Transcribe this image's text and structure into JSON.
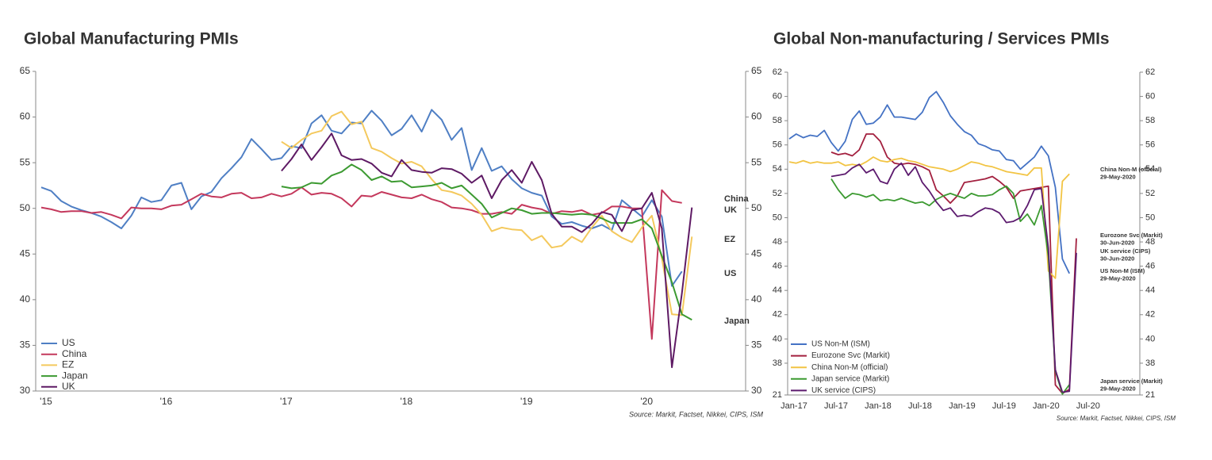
{
  "chart_data": [
    {
      "type": "line",
      "title": "Global Manufacturing PMIs",
      "categories": [
        "'15",
        null,
        null,
        null,
        null,
        null,
        null,
        null,
        null,
        null,
        null,
        null,
        "'16",
        null,
        null,
        null,
        null,
        null,
        null,
        null,
        null,
        null,
        null,
        null,
        "'17",
        null,
        null,
        null,
        null,
        null,
        null,
        null,
        null,
        null,
        null,
        null,
        "'18",
        null,
        null,
        null,
        null,
        null,
        null,
        null,
        null,
        null,
        null,
        null,
        "'19",
        null,
        null,
        null,
        null,
        null,
        null,
        null,
        null,
        null,
        null,
        null,
        "'20",
        null,
        null,
        null,
        null,
        null
      ],
      "series": [
        {
          "name": "US",
          "color": "#4f7fc4",
          "values": [
            52.3,
            51.9,
            50.8,
            50.2,
            49.8,
            49.5,
            49.1,
            48.5,
            47.8,
            49.2,
            51.2,
            50.7,
            50.9,
            52.5,
            52.8,
            49.9,
            51.3,
            51.8,
            53.3,
            54.4,
            55.6,
            57.6,
            56.5,
            55.3,
            55.5,
            56.8,
            56.6,
            59.3,
            60.2,
            58.5,
            58.2,
            59.4,
            59.3,
            60.7,
            59.6,
            58.0,
            58.7,
            60.2,
            58.4,
            60.8,
            59.7,
            57.5,
            58.8,
            54.2,
            56.6,
            54.1,
            54.6,
            53.2,
            52.2,
            51.7,
            51.4,
            49.1,
            48.3,
            48.5,
            48.1,
            47.8,
            48.2,
            47.6,
            50.9,
            50.0,
            49.1,
            50.9,
            49.1,
            41.5,
            43.1,
            null
          ]
        },
        {
          "name": "China",
          "color": "#c4385c",
          "values": [
            50.1,
            49.9,
            49.6,
            49.7,
            49.7,
            49.5,
            49.6,
            49.3,
            48.9,
            50.1,
            50.0,
            50.0,
            49.9,
            50.3,
            50.4,
            51.0,
            51.6,
            51.3,
            51.2,
            51.6,
            51.7,
            51.1,
            51.2,
            51.6,
            51.3,
            51.6,
            52.3,
            51.5,
            51.7,
            51.6,
            51.1,
            50.2,
            51.4,
            51.3,
            51.8,
            51.5,
            51.2,
            51.1,
            51.5,
            51.0,
            50.7,
            50.1,
            50.0,
            49.8,
            49.4,
            49.4,
            49.6,
            49.4,
            50.4,
            50.1,
            49.9,
            49.4,
            49.7,
            49.6,
            49.8,
            49.3,
            49.5,
            50.2,
            50.2,
            50.0,
            50.0,
            35.7,
            52.0,
            50.8,
            50.6,
            null
          ]
        },
        {
          "name": "EZ",
          "color": "#f4c95d",
          "values": [
            null,
            null,
            null,
            null,
            null,
            null,
            null,
            null,
            null,
            null,
            null,
            null,
            null,
            null,
            null,
            null,
            null,
            null,
            null,
            null,
            null,
            null,
            null,
            null,
            57.3,
            56.6,
            57.5,
            58.2,
            58.5,
            60.1,
            60.6,
            59.2,
            59.5,
            56.6,
            56.2,
            55.5,
            54.9,
            55.1,
            54.6,
            53.2,
            52.0,
            51.8,
            51.4,
            50.5,
            49.3,
            47.5,
            47.9,
            47.7,
            47.6,
            46.5,
            47.0,
            45.7,
            45.9,
            46.9,
            46.3,
            47.9,
            49.2,
            47.5,
            46.8,
            46.3,
            47.9,
            49.2,
            44.5,
            38.4,
            38.3,
            46.9
          ]
        },
        {
          "name": "Japan",
          "color": "#3c9a31",
          "values": [
            null,
            null,
            null,
            null,
            null,
            null,
            null,
            null,
            null,
            null,
            null,
            null,
            null,
            null,
            null,
            null,
            null,
            null,
            null,
            null,
            null,
            null,
            null,
            null,
            52.4,
            52.2,
            52.3,
            52.8,
            52.7,
            53.6,
            54.0,
            54.8,
            54.2,
            53.1,
            53.5,
            52.9,
            53.0,
            52.3,
            52.4,
            52.5,
            52.8,
            52.2,
            52.5,
            51.5,
            50.5,
            49.0,
            49.5,
            50.0,
            49.8,
            49.4,
            49.5,
            49.5,
            49.4,
            49.3,
            49.4,
            49.3,
            48.9,
            48.4,
            48.4,
            48.4,
            48.8,
            47.8,
            44.8,
            41.9,
            38.4,
            37.8
          ]
        },
        {
          "name": "UK",
          "color": "#5e1a64",
          "values": [
            null,
            null,
            null,
            null,
            null,
            null,
            null,
            null,
            null,
            null,
            null,
            null,
            null,
            null,
            null,
            null,
            null,
            null,
            null,
            null,
            null,
            null,
            null,
            null,
            54.1,
            55.4,
            57.0,
            55.3,
            56.7,
            58.2,
            55.8,
            55.3,
            55.4,
            54.9,
            53.9,
            53.5,
            55.3,
            54.2,
            54.0,
            53.9,
            54.4,
            54.3,
            53.8,
            52.8,
            53.6,
            51.1,
            53.1,
            54.2,
            52.8,
            55.1,
            53.1,
            49.4,
            48.0,
            48.0,
            47.4,
            48.3,
            49.6,
            49.3,
            47.5,
            49.8,
            50.0,
            51.7,
            47.8,
            32.6,
            40.7,
            50.1
          ]
        }
      ],
      "ylim": [
        30,
        65
      ],
      "yticks": [
        30,
        35,
        40,
        45,
        50,
        55,
        60,
        65
      ],
      "y2lim": [
        30,
        65
      ],
      "y2ticks": [
        30,
        35,
        40,
        45,
        50,
        55,
        60,
        65
      ],
      "legend": "lower left",
      "grid": false,
      "source": "Source: Markit, Factset, Nikkei, CIPS, ISM"
    },
    {
      "type": "line",
      "title": "Global Non-manufacturing / Services PMIs",
      "categories": [
        "Jan-17",
        null,
        null,
        null,
        null,
        null,
        "Jul-17",
        null,
        null,
        null,
        null,
        null,
        "Jan-18",
        null,
        null,
        null,
        null,
        null,
        "Jul-18",
        null,
        null,
        null,
        null,
        null,
        "Jan-19",
        null,
        null,
        null,
        null,
        null,
        "Jul-19",
        null,
        null,
        null,
        null,
        null,
        "Jan-20",
        null,
        null,
        null,
        null,
        null,
        "Jul-20"
      ],
      "series": [
        {
          "name": "US Non-M (ISM)",
          "end_date": "29-May-2020",
          "color": "#4472c4",
          "values": [
            56.5,
            56.9,
            56.6,
            56.8,
            56.7,
            57.2,
            56.2,
            55.5,
            56.3,
            58.1,
            58.8,
            57.7,
            57.8,
            58.3,
            59.3,
            58.3,
            58.3,
            58.2,
            58.1,
            58.7,
            59.9,
            60.4,
            59.5,
            58.4,
            57.7,
            57.1,
            56.8,
            56.1,
            55.9,
            55.6,
            55.5,
            54.8,
            54.7,
            54.0,
            54.5,
            55.0,
            55.9,
            55.1,
            52.5,
            46.6,
            45.4,
            null,
            null
          ]
        },
        {
          "name": "Eurozone Svc (Markit)",
          "end_date": "30-Jun-2020",
          "color": "#a3203f",
          "values": [
            null,
            null,
            null,
            null,
            null,
            null,
            55.4,
            55.2,
            55.3,
            55.1,
            55.6,
            56.9,
            56.9,
            56.3,
            55.0,
            54.5,
            54.4,
            54.5,
            54.4,
            54.2,
            53.9,
            52.3,
            51.8,
            51.2,
            51.8,
            52.9,
            53.0,
            53.1,
            53.2,
            53.4,
            53.0,
            52.5,
            51.6,
            52.2,
            52.3,
            52.4,
            52.5,
            52.6,
            26.4,
            21.8,
            24.0,
            48.3,
            null
          ]
        },
        {
          "name": "China Non-M (official)",
          "end_date": "29-May-2020",
          "color": "#f2c443",
          "values": [
            54.6,
            54.5,
            54.7,
            54.5,
            54.6,
            54.5,
            54.5,
            54.6,
            54.3,
            54.4,
            54.3,
            54.6,
            55.0,
            54.7,
            54.6,
            54.8,
            54.9,
            54.7,
            54.6,
            54.4,
            54.2,
            54.1,
            54.0,
            53.8,
            54.0,
            54.3,
            54.6,
            54.5,
            54.3,
            54.2,
            54.0,
            53.8,
            53.7,
            53.6,
            53.5,
            54.1,
            54.1,
            45.6,
            45.0,
            53.0,
            53.6,
            null,
            null
          ]
        },
        {
          "name": "Japan service (Markit)",
          "end_date": "29-May-2020",
          "color": "#3c9a31",
          "values": [
            null,
            null,
            null,
            null,
            null,
            null,
            53.2,
            52.3,
            51.6,
            52.0,
            51.9,
            51.7,
            51.9,
            51.4,
            51.5,
            51.4,
            51.6,
            51.4,
            51.2,
            51.3,
            51.0,
            51.5,
            51.8,
            52.0,
            51.8,
            51.6,
            52.0,
            51.8,
            51.8,
            51.9,
            52.3,
            52.6,
            52.0,
            49.7,
            50.3,
            49.4,
            51.0,
            46.8,
            33.8,
            21.5,
            26.5,
            null,
            null
          ]
        },
        {
          "name": "UK service (CIPS)",
          "end_date": "30-Jun-2020",
          "color": "#5c1a6e",
          "values": [
            null,
            null,
            null,
            null,
            null,
            null,
            53.4,
            53.5,
            53.6,
            54.1,
            54.4,
            53.7,
            54.0,
            53.0,
            52.8,
            54.0,
            54.5,
            53.5,
            54.2,
            52.9,
            52.2,
            51.3,
            50.6,
            50.8,
            50.1,
            50.2,
            50.1,
            50.5,
            50.8,
            50.7,
            50.4,
            49.6,
            49.7,
            50.0,
            51.0,
            52.3,
            52.4,
            47.5,
            34.5,
            22.5,
            23.0,
            47.1,
            null
          ]
        }
      ],
      "ylim": [
        21,
        62
      ],
      "yticks": [
        21,
        38,
        40,
        42,
        44,
        46,
        48,
        50,
        52,
        54,
        56,
        58,
        60,
        62
      ],
      "y2lim": [
        21,
        62
      ],
      "y2ticks": [
        21,
        38,
        40,
        42,
        44,
        46,
        48,
        50,
        52,
        54,
        56,
        58,
        60,
        62
      ],
      "y_axis_break": true,
      "legend": "lower left",
      "grid": false,
      "source": "Source: Markit, Factset, Nikkei, CIPS, ISM"
    }
  ]
}
